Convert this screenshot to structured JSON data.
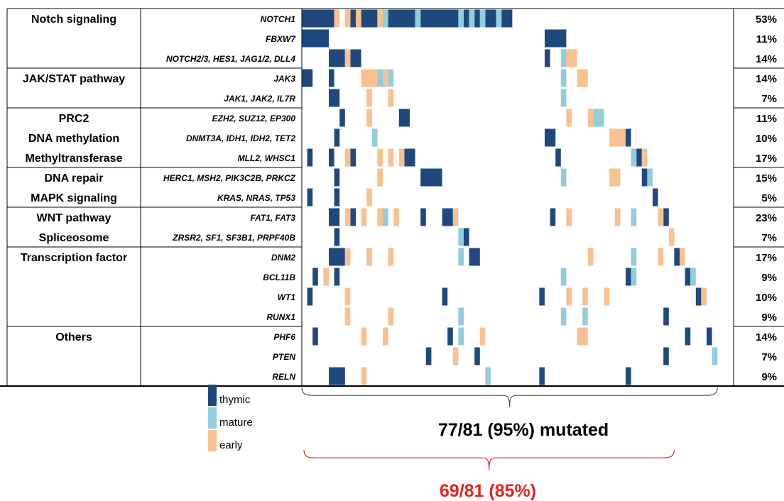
{
  "chart_data": {
    "type": "heatmap",
    "subtype": "oncoprint",
    "colors": {
      "thymic": "#1f497d",
      "mature": "#92cddc",
      "early": "#fac090",
      "grid": "#000000"
    },
    "legend": {
      "placement": "bottom-left",
      "items": [
        {
          "key": "thymic",
          "label": "thymic"
        },
        {
          "key": "mature",
          "label": "mature"
        },
        {
          "key": "early",
          "label": "early"
        }
      ]
    },
    "groups": [
      {
        "names": [
          "Notch signaling"
        ],
        "rows": [
          0,
          1,
          2
        ]
      },
      {
        "names": [
          "JAK/STAT pathway"
        ],
        "rows": [
          3,
          4
        ]
      },
      {
        "names": [
          "PRC2",
          "DNA methylation",
          "Methyltransferase"
        ],
        "rows": [
          5,
          6,
          7
        ]
      },
      {
        "names": [
          "DNA repair",
          "MAPK signaling"
        ],
        "rows": [
          8,
          9
        ]
      },
      {
        "names": [
          "WNT pathway",
          "Spliceosome"
        ],
        "rows": [
          10,
          11
        ]
      },
      {
        "names": [
          "Transcription factor"
        ],
        "rows": [
          12,
          13,
          14,
          15
        ]
      },
      {
        "names": [
          "Others"
        ],
        "rows": [
          16,
          17,
          18
        ]
      }
    ],
    "rows": [
      {
        "gene": "NOTCH1",
        "pct": "53%",
        "t": [
          [
            0,
            5
          ],
          [
            9,
            9
          ],
          [
            11,
            13
          ],
          [
            16,
            20
          ],
          [
            22,
            28
          ],
          [
            30,
            30
          ],
          [
            32,
            32
          ],
          [
            34,
            35
          ],
          [
            37,
            38
          ]
        ],
        "m": [
          [
            15,
            15
          ],
          [
            21,
            21
          ],
          [
            29,
            29
          ],
          [
            31,
            31
          ],
          [
            33,
            33
          ],
          [
            36,
            36
          ]
        ],
        "e": [
          [
            6,
            6
          ],
          [
            8,
            8
          ],
          [
            10,
            10
          ],
          [
            14,
            14
          ]
        ]
      },
      {
        "gene": "FBXW7",
        "pct": "11%",
        "t": [
          [
            0,
            4
          ],
          [
            45,
            48
          ]
        ],
        "m": [],
        "e": []
      },
      {
        "gene": "NOTCH2/3, HES1, JAG1/2, DLL4",
        "pct": "14%",
        "t": [
          [
            5,
            7
          ],
          [
            9,
            10
          ],
          [
            45,
            45
          ]
        ],
        "m": [
          [
            48,
            48
          ]
        ],
        "e": [
          [
            8,
            8
          ],
          [
            49,
            50
          ]
        ]
      },
      {
        "gene": "JAK3",
        "pct": "14%",
        "t": [
          [
            0,
            1
          ],
          [
            5,
            5
          ]
        ],
        "m": [
          [
            14,
            14
          ],
          [
            16,
            16
          ],
          [
            48,
            48
          ]
        ],
        "e": [
          [
            11,
            13
          ],
          [
            15,
            15
          ],
          [
            51,
            52
          ]
        ]
      },
      {
        "gene": "JAK1, JAK2, IL7R",
        "pct": "7%",
        "t": [
          [
            5,
            6
          ]
        ],
        "m": [
          [
            48,
            48
          ]
        ],
        "e": [
          [
            12,
            12
          ],
          [
            16,
            16
          ]
        ]
      },
      {
        "gene": "EZH2, SUZ12, EP300",
        "pct": "11%",
        "t": [
          [
            7,
            7
          ],
          [
            18,
            19
          ]
        ],
        "m": [
          [
            54,
            55
          ]
        ],
        "e": [
          [
            12,
            12
          ],
          [
            49,
            49
          ],
          [
            53,
            53
          ]
        ]
      },
      {
        "gene": "DNMT3A, IDH1, IDH2, TET2",
        "pct": "10%",
        "t": [
          [
            6,
            6
          ],
          [
            45,
            46
          ],
          [
            60,
            60
          ]
        ],
        "m": [
          [
            13,
            13
          ]
        ],
        "e": [
          [
            57,
            59
          ]
        ]
      },
      {
        "gene": "MLL2, WHSC1",
        "pct": "17%",
        "t": [
          [
            1,
            1
          ],
          [
            5,
            5
          ],
          [
            9,
            9
          ],
          [
            19,
            20
          ],
          [
            47,
            47
          ],
          [
            62,
            62
          ]
        ],
        "m": [
          [
            61,
            61
          ]
        ],
        "e": [
          [
            8,
            8
          ],
          [
            14,
            14
          ],
          [
            16,
            16
          ],
          [
            18,
            18
          ],
          [
            63,
            63
          ]
        ]
      },
      {
        "gene": "HERC1, MSH2, PIK3C2B, PRKCZ",
        "pct": "15%",
        "t": [
          [
            6,
            6
          ],
          [
            22,
            25
          ],
          [
            63,
            63
          ]
        ],
        "m": [
          [
            48,
            48
          ],
          [
            64,
            64
          ]
        ],
        "e": [
          [
            14,
            14
          ],
          [
            57,
            58
          ]
        ]
      },
      {
        "gene": "KRAS, NRAS, TP53",
        "pct": "5%",
        "t": [
          [
            1,
            1
          ],
          [
            6,
            6
          ],
          [
            65,
            65
          ]
        ],
        "m": [],
        "e": [
          [
            12,
            12
          ]
        ]
      },
      {
        "gene": "FAT1, FAT3",
        "pct": "23%",
        "t": [
          [
            5,
            6
          ],
          [
            9,
            9
          ],
          [
            22,
            22
          ],
          [
            26,
            27
          ],
          [
            46,
            46
          ],
          [
            67,
            67
          ]
        ],
        "m": [
          [
            15,
            15
          ],
          [
            61,
            61
          ]
        ],
        "e": [
          [
            8,
            8
          ],
          [
            11,
            11
          ],
          [
            14,
            14
          ],
          [
            17,
            17
          ],
          [
            28,
            28
          ],
          [
            49,
            49
          ],
          [
            58,
            58
          ],
          [
            66,
            66
          ]
        ]
      },
      {
        "gene": "ZRSR2, SF1, SF3B1, PRPF40B",
        "pct": "7%",
        "t": [
          [
            6,
            6
          ],
          [
            30,
            30
          ]
        ],
        "m": [
          [
            29,
            29
          ]
        ],
        "e": [
          [
            68,
            68
          ]
        ]
      },
      {
        "gene": "DNM2",
        "pct": "17%",
        "t": [
          [
            5,
            7
          ],
          [
            31,
            32
          ],
          [
            69,
            69
          ]
        ],
        "m": [
          [
            29,
            29
          ],
          [
            61,
            61
          ]
        ],
        "e": [
          [
            8,
            8
          ],
          [
            12,
            12
          ],
          [
            16,
            16
          ],
          [
            53,
            53
          ],
          [
            66,
            66
          ],
          [
            70,
            70
          ]
        ]
      },
      {
        "gene": "BCL11B",
        "pct": "9%",
        "t": [
          [
            2,
            2
          ],
          [
            6,
            6
          ],
          [
            60,
            60
          ],
          [
            71,
            71
          ]
        ],
        "m": [
          [
            48,
            48
          ],
          [
            61,
            61
          ],
          [
            72,
            72
          ]
        ],
        "e": [
          [
            4,
            4
          ]
        ]
      },
      {
        "gene": "WT1",
        "pct": "10%",
        "t": [
          [
            1,
            1
          ],
          [
            26,
            26
          ],
          [
            44,
            44
          ],
          [
            73,
            73
          ]
        ],
        "m": [],
        "e": [
          [
            8,
            8
          ],
          [
            49,
            49
          ],
          [
            52,
            52
          ],
          [
            56,
            56
          ],
          [
            74,
            74
          ]
        ]
      },
      {
        "gene": "RUNX1",
        "pct": "9%",
        "t": [
          [
            67,
            67
          ]
        ],
        "m": [
          [
            29,
            29
          ],
          [
            48,
            48
          ],
          [
            52,
            52
          ]
        ],
        "e": [
          [
            8,
            8
          ],
          [
            16,
            16
          ]
        ]
      },
      {
        "gene": "PHF6",
        "pct": "14%",
        "t": [
          [
            2,
            2
          ],
          [
            27,
            27
          ],
          [
            71,
            71
          ],
          [
            75,
            75
          ]
        ],
        "m": [
          [
            29,
            29
          ]
        ],
        "e": [
          [
            11,
            11
          ],
          [
            15,
            15
          ],
          [
            33,
            33
          ],
          [
            51,
            52
          ]
        ]
      },
      {
        "gene": "PTEN",
        "pct": "7%",
        "t": [
          [
            23,
            23
          ],
          [
            32,
            32
          ],
          [
            67,
            67
          ]
        ],
        "m": [
          [
            76,
            76
          ]
        ],
        "e": [
          [
            28,
            28
          ]
        ]
      },
      {
        "gene": "RELN",
        "pct": "9%",
        "t": [
          [
            5,
            7
          ],
          [
            44,
            44
          ],
          [
            60,
            60
          ]
        ],
        "m": [
          [
            34,
            34
          ]
        ],
        "e": [
          [
            11,
            11
          ]
        ]
      }
    ],
    "n_samples": 81,
    "annotations": [
      {
        "text": "77/81 (95%)  mutated",
        "color": "#000000",
        "bracket_from": 0,
        "bracket_to": 76
      },
      {
        "text": "69/81 (85%)",
        "color": "#e8221e",
        "bracket_from": 0,
        "bracket_to": 68
      }
    ]
  }
}
